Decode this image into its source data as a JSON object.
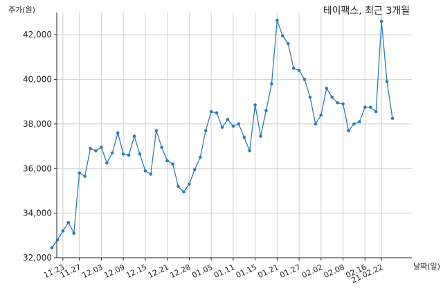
{
  "chart_data": {
    "type": "line",
    "title": "테이팩스, 최근 3개월",
    "ylabel": "주가(원)",
    "xlabel": "날짜(일)",
    "ylim": [
      32000,
      43000
    ],
    "yticks": [
      32000,
      34000,
      36000,
      38000,
      40000,
      42000
    ],
    "ytick_labels": [
      "32,000",
      "34,000",
      "36,000",
      "38,000",
      "40,000",
      "42,000"
    ],
    "x_tick_labels": [
      "11.23",
      "11.27",
      "12.03",
      "12.09",
      "12.15",
      "12.21",
      "12.28",
      "01.05",
      "01.11",
      "01.15",
      "01.21",
      "01.27",
      "02.02",
      "02.08",
      "02.16",
      "21.02.22"
    ],
    "x_tick_positions": [
      2,
      5,
      9,
      13,
      17,
      21,
      25,
      29,
      33,
      37,
      41,
      45,
      49,
      53,
      57,
      60
    ],
    "grid": true,
    "color": "#2e7ab5",
    "series": [
      {
        "values": [
          32450,
          32800,
          33200,
          33580,
          33100,
          35800,
          35650,
          36900,
          36800,
          36950,
          36250,
          36700,
          37600,
          36650,
          36600,
          37450,
          36650,
          35900,
          35750,
          37700,
          36950,
          36350,
          36200,
          35200,
          34950,
          35300,
          35950,
          36500,
          37700,
          38550,
          38500,
          37850,
          38200,
          37900,
          38000,
          37400,
          36800,
          38850,
          37450,
          38600,
          39800,
          42650,
          41950,
          41600,
          40500,
          40400,
          40000,
          39200,
          38000,
          38400,
          39600,
          39200,
          38950,
          38900,
          37700,
          38000,
          38100,
          38750,
          38750,
          38550,
          42600,
          39900,
          38250
        ]
      }
    ]
  }
}
